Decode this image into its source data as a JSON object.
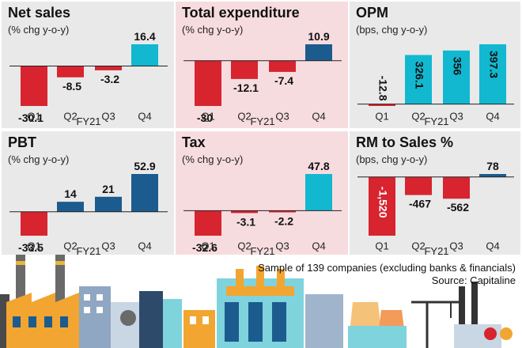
{
  "colors": {
    "panel_grey": "#e9e9ea",
    "panel_pink": "#f7dcdf",
    "red": "#d7242f",
    "cyan": "#11b8d0",
    "blue": "#1c5b8e",
    "baseline": "#222222"
  },
  "chart_data": [
    {
      "type": "bar",
      "title": "Net sales",
      "subtitle": "(% chg y-o-y)",
      "categories": [
        "Q1",
        "Q2",
        "Q3",
        "Q4"
      ],
      "values": [
        -30.1,
        -8.5,
        -3.2,
        16.4
      ],
      "value_labels": [
        "-30.1",
        "-8.5",
        "-3.2",
        "16.4"
      ],
      "bar_colors": [
        "red",
        "red",
        "red",
        "cyan"
      ],
      "xlabel": "FY21",
      "ylim": [
        -30.1,
        16.4
      ]
    },
    {
      "type": "bar",
      "title": "Total expenditure",
      "subtitle": "(% chg y-o-y)",
      "categories": [
        "Q1",
        "Q2",
        "Q3",
        "Q4"
      ],
      "values": [
        -30,
        -12.1,
        -7.4,
        10.9
      ],
      "value_labels": [
        "-30",
        "-12.1",
        "-7.4",
        "10.9"
      ],
      "bar_colors": [
        "red",
        "red",
        "red",
        "blue"
      ],
      "xlabel": "FY21",
      "ylim": [
        -30,
        10.9
      ]
    },
    {
      "type": "bar",
      "title": "OPM",
      "subtitle": "(bps, chg y-o-y)",
      "categories": [
        "Q1",
        "Q2",
        "Q3",
        "Q4"
      ],
      "values": [
        -12.8,
        326.1,
        356,
        397.3
      ],
      "value_labels": [
        "-12.8",
        "326.1",
        "356",
        "397.3"
      ],
      "bar_colors": [
        "red",
        "cyan",
        "cyan",
        "cyan"
      ],
      "xlabel": "FY21",
      "ylim": [
        -12.8,
        397.3
      ]
    },
    {
      "type": "bar",
      "title": "PBT",
      "subtitle": "(% chg y-o-y)",
      "categories": [
        "Q1",
        "Q2",
        "Q3",
        "Q4"
      ],
      "values": [
        -33.5,
        14,
        21,
        52.9
      ],
      "value_labels": [
        "-33.5",
        "14",
        "21",
        "52.9"
      ],
      "bar_colors": [
        "red",
        "blue",
        "blue",
        "blue"
      ],
      "xlabel": "FY21",
      "ylim": [
        -33.5,
        52.9
      ]
    },
    {
      "type": "bar",
      "title": "Tax",
      "subtitle": "(% chg y-o-y)",
      "categories": [
        "Q1",
        "Q2",
        "Q3",
        "Q4"
      ],
      "values": [
        -32.6,
        -3.1,
        -2.2,
        47.8
      ],
      "value_labels": [
        "-32.6",
        "-3.1",
        "-2.2",
        "47.8"
      ],
      "bar_colors": [
        "red",
        "red",
        "red",
        "cyan"
      ],
      "xlabel": "FY21",
      "ylim": [
        -32.6,
        47.8
      ]
    },
    {
      "type": "bar",
      "title": "RM to Sales %",
      "subtitle": "(bps, chg y-o-y)",
      "categories": [
        "Q1",
        "Q2",
        "Q3",
        "Q4"
      ],
      "values": [
        -1520,
        -467,
        -562,
        78
      ],
      "value_labels": [
        "-1,520",
        "-467",
        "-562",
        "78"
      ],
      "bar_colors": [
        "red",
        "red",
        "red",
        "blue"
      ],
      "xlabel": "FY21",
      "ylim": [
        -1520,
        78
      ]
    }
  ],
  "footer": {
    "sample": "Sample of 139 companies (excluding banks & financials)",
    "source": "Source: Capitaline"
  }
}
